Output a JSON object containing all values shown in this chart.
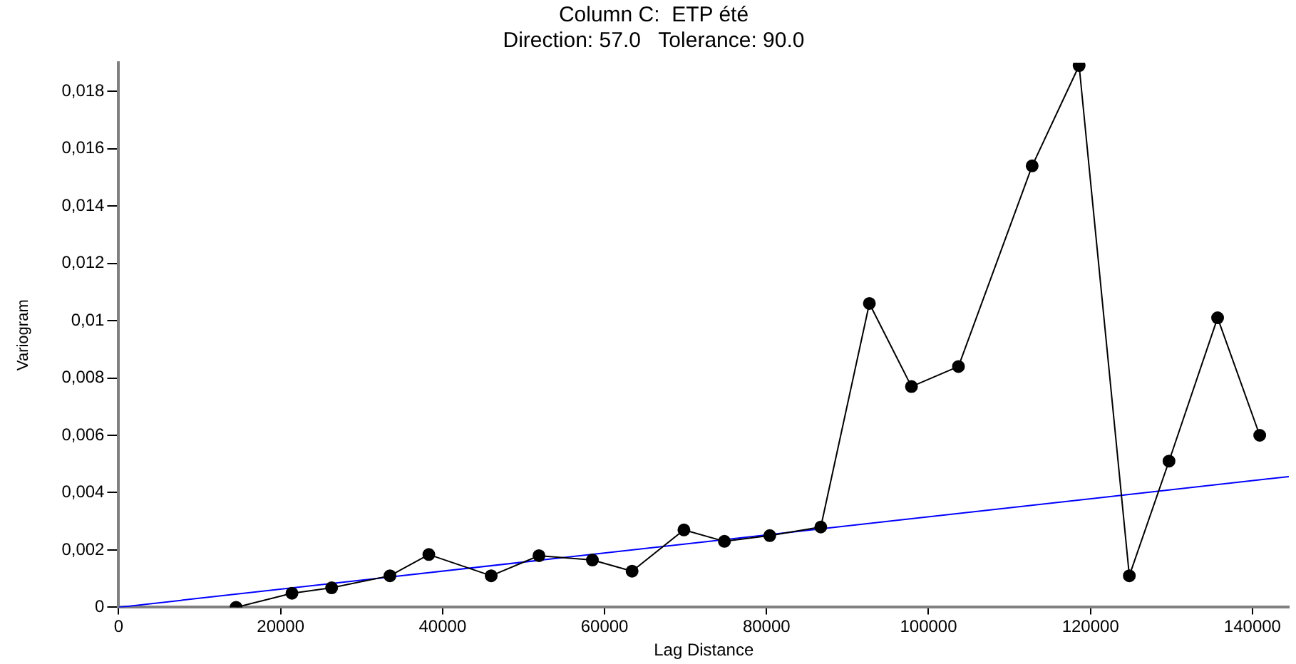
{
  "chart_data": {
    "type": "line",
    "title": "Column C:  ETP été",
    "subtitle": "Direction: 57.0   Tolerance: 90.0",
    "xlabel": "Lag Distance",
    "ylabel": "Variogram",
    "xlim": [
      0,
      144500
    ],
    "xticks": [
      0,
      20000,
      40000,
      60000,
      80000,
      100000,
      120000,
      140000
    ],
    "ylim": [
      0,
      0.019
    ],
    "yticks": [
      {
        "value": 0,
        "label": "0"
      },
      {
        "value": 0.002,
        "label": "0,002"
      },
      {
        "value": 0.004,
        "label": "0,004"
      },
      {
        "value": 0.006,
        "label": "0,006"
      },
      {
        "value": 0.008,
        "label": "0,008"
      },
      {
        "value": 0.01,
        "label": "0,01"
      },
      {
        "value": 0.012,
        "label": "0,012"
      },
      {
        "value": 0.014,
        "label": "0,014"
      },
      {
        "value": 0.016,
        "label": "0,016"
      },
      {
        "value": 0.018,
        "label": "0,018"
      }
    ],
    "grid": false,
    "legend": false,
    "marker": "circle",
    "line_style": "solid",
    "series": [
      {
        "color": "#000000",
        "x": [
          14500,
          21400,
          26300,
          33500,
          38300,
          46000,
          51900,
          58500,
          63400,
          69800,
          74800,
          80400,
          86700,
          92700,
          97900,
          103700,
          112800,
          118600,
          124800,
          129700,
          135700,
          140900
        ],
        "values": [
          0,
          0.00049,
          0.00068,
          0.0011,
          0.00184,
          0.0011,
          0.0018,
          0.00165,
          0.00126,
          0.0027,
          0.0023,
          0.0025,
          0.0028,
          0.0106,
          0.0077,
          0.0084,
          0.0154,
          0.0189,
          0.0011,
          0.0051,
          0.0101,
          0.006
        ]
      },
      {
        "type": "line",
        "color": "#0000ff",
        "marker": "none",
        "x": [
          0,
          144500
        ],
        "values": [
          0,
          0.00456
        ]
      }
    ]
  }
}
